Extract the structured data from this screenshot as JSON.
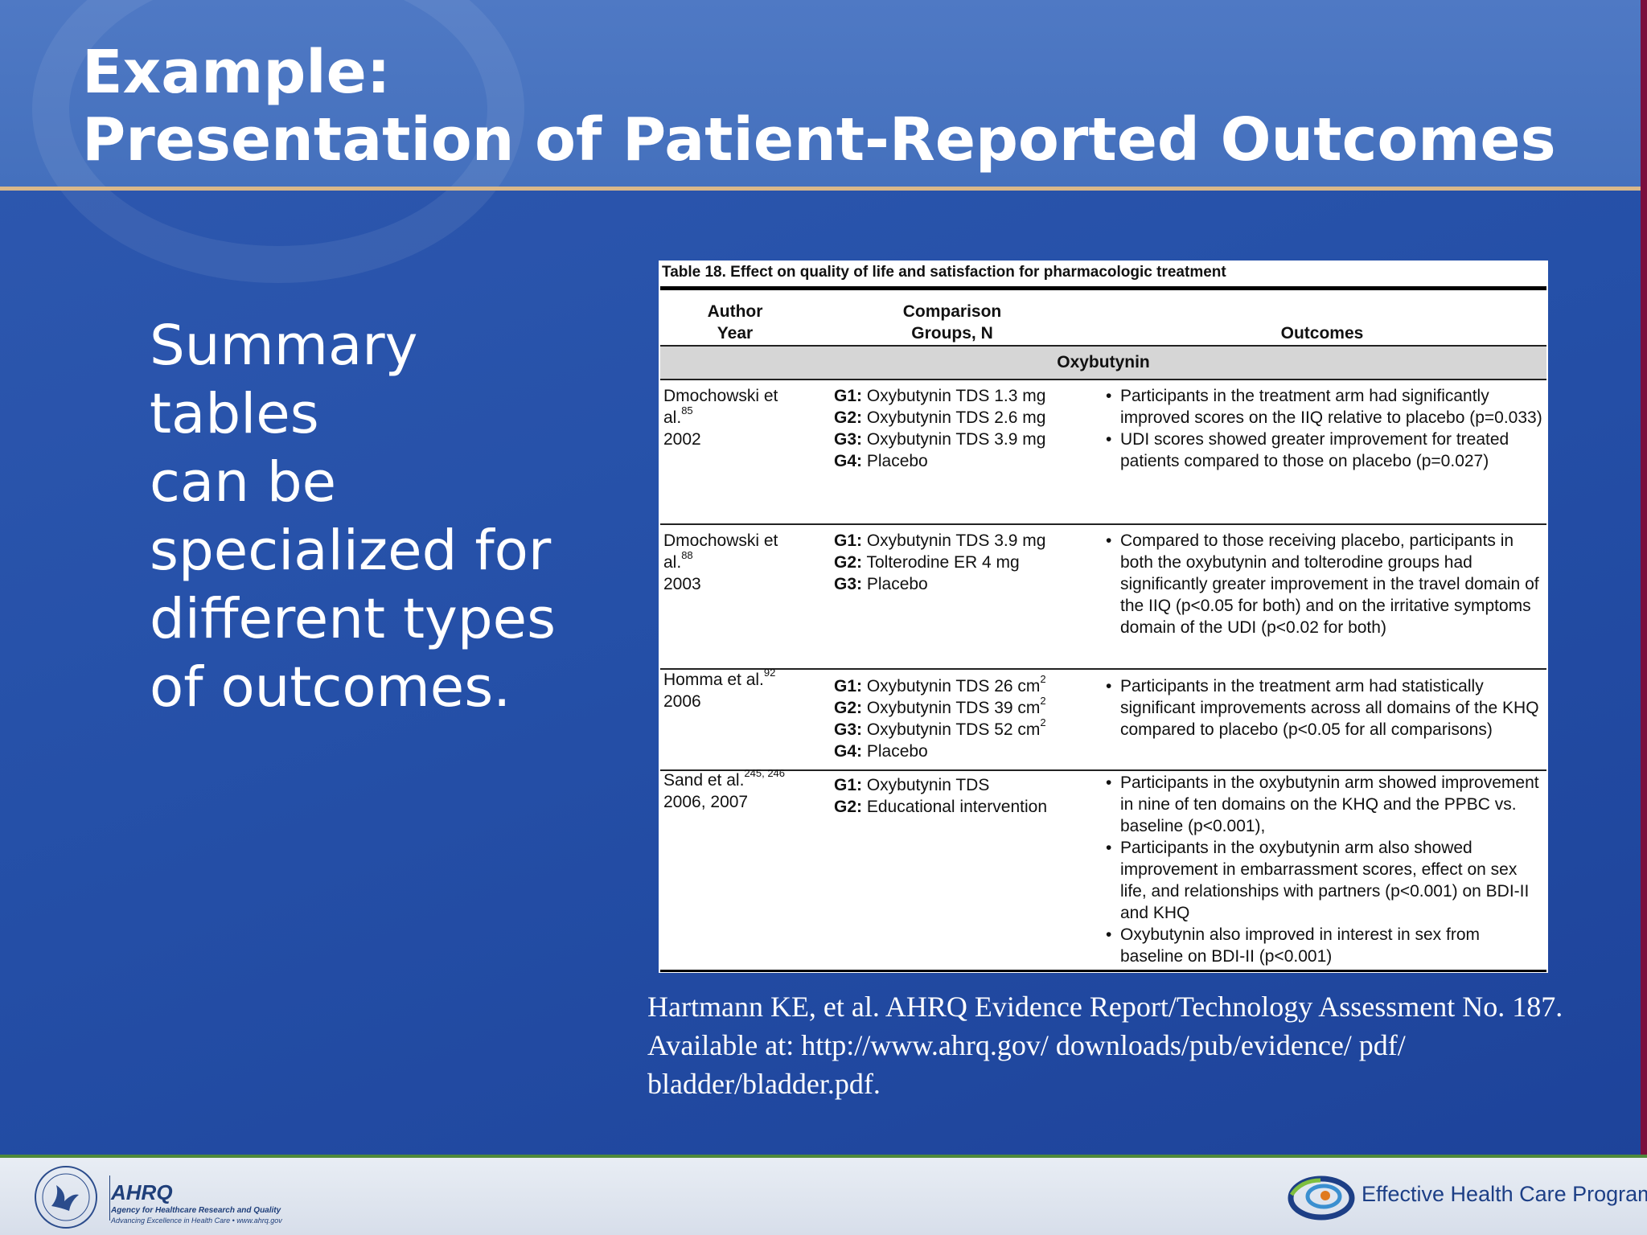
{
  "slide": {
    "title_line1": "Example:",
    "title_line2": "Presentation of Patient-Reported Outcomes",
    "body": [
      "Summary tables",
      "can be",
      "specialized for",
      "different types",
      "of outcomes."
    ],
    "citation": "Hartmann KE, et al. AHRQ Evidence Report/Technology Assessment No. 187. Available at: http://www.ahrq.gov/ downloads/pub/evidence/ pdf/ bladder/bladder.pdf."
  },
  "table": {
    "caption": "Table 18. Effect on quality of life and satisfaction for pharmacologic treatment",
    "headers": {
      "author_l1": "Author",
      "author_l2": "Year",
      "groups_l1": "Comparison",
      "groups_l2": "Groups, N",
      "outcomes": "Outcomes"
    },
    "section": "Oxybutynin",
    "rows": [
      {
        "author_a": "Dmochowski et",
        "author_b": "al.",
        "ref": "85",
        "year": "2002",
        "groups": [
          {
            "g": "G1:",
            "t": " Oxybutynin TDS 1.3 mg"
          },
          {
            "g": "G2:",
            "t": " Oxybutynin TDS 2.6 mg"
          },
          {
            "g": "G3:",
            "t": " Oxybutynin TDS 3.9 mg"
          },
          {
            "g": "G4:",
            "t": " Placebo"
          }
        ],
        "outcomes": [
          "Participants in the treatment arm had significantly improved scores on the IIQ relative to placebo (p=0.033)",
          "UDI scores showed greater improvement for treated patients compared to those on placebo (p=0.027)"
        ]
      },
      {
        "author_a": "Dmochowski et",
        "author_b": "al.",
        "ref": "88",
        "year": "2003",
        "groups": [
          {
            "g": "G1:",
            "t": " Oxybutynin TDS 3.9 mg"
          },
          {
            "g": "G2:",
            "t": " Tolterodine ER 4 mg"
          },
          {
            "g": "G3:",
            "t": " Placebo"
          }
        ],
        "outcomes": [
          "Compared to those receiving placebo, participants in both the oxybutynin and tolterodine groups had significantly greater improvement in the travel domain of the IIQ (p<0.05 for both) and on the irritative symptoms domain of the UDI (p<0.02 for both)"
        ]
      },
      {
        "author_a": "Homma et al.",
        "ref": "92",
        "year": "2006",
        "groups": [
          {
            "g": "G1:",
            "t": " Oxybutynin TDS 26 cm",
            "sup": "2"
          },
          {
            "g": "G2:",
            "t": " Oxybutynin TDS 39 cm",
            "sup": "2"
          },
          {
            "g": "G3:",
            "t": " Oxybutynin TDS 52 cm",
            "sup": "2"
          },
          {
            "g": "G4:",
            "t": " Placebo"
          }
        ],
        "outcomes": [
          "Participants in the treatment arm had statistically significant improvements across all domains of the KHQ compared to placebo (p<0.05 for all comparisons)"
        ]
      },
      {
        "author_a": "Sand et al.",
        "ref": "245, 246",
        "year": "2006, 2007",
        "groups": [
          {
            "g": "G1:",
            "t": " Oxybutynin TDS"
          },
          {
            "g": "G2:",
            "t": " Educational intervention"
          }
        ],
        "outcomes": [
          "Participants in the oxybutynin arm showed improvement in nine of ten domains on the KHQ and the PPBC vs. baseline (p<0.001),",
          "Participants in the oxybutynin arm also showed improvement in embarrassment scores, effect on sex life, and relationships with partners (p<0.001) on BDI-II and KHQ",
          "Oxybutynin also improved in interest in sex from baseline on BDI-II (p<0.001)"
        ]
      }
    ]
  },
  "footer": {
    "ahrq_name": "AHRQ",
    "ahrq_tagline": "Agency for Healthcare Research and Quality",
    "ahrq_tagline2": "Advancing Excellence in Health Care • www.ahrq.gov",
    "program_name": "Effective Health Care Program"
  },
  "colors": {
    "background": "#2550a8",
    "header": "#4f79c4",
    "accent_rule": "#d9b88a",
    "footer": "#e1e7f0"
  }
}
